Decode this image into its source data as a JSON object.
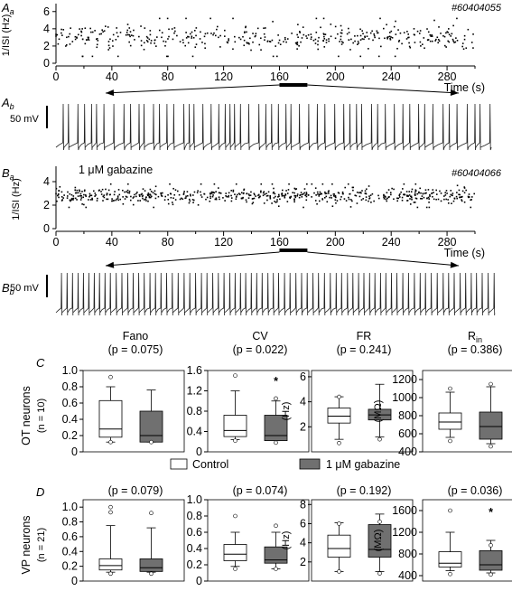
{
  "panels": {
    "Aa": {
      "label": "A",
      "sub": "a",
      "id": "#60404055",
      "ylabel": "1/ISI (Hz)",
      "yticks": [
        "0",
        "2",
        "4",
        "6"
      ],
      "xticks": [
        "0",
        "40",
        "80",
        "120",
        "160",
        "200",
        "240",
        "280"
      ],
      "xlabel": "Time (s)"
    },
    "Ab": {
      "label": "A",
      "sub": "b",
      "scale": "50 mV"
    },
    "Ba": {
      "label": "B",
      "sub": "a",
      "id": "#60404066",
      "ylabel": "1/ISI (Hz)",
      "yticks": [
        "0",
        "2",
        "4",
        "6"
      ],
      "xticks": [
        "0",
        "40",
        "80",
        "120",
        "160",
        "200",
        "240",
        "280"
      ],
      "xlabel": "Time (s)",
      "condition": "1 μM gabazine"
    },
    "Bb": {
      "label": "B",
      "sub": "b",
      "scale": "50 mV"
    },
    "C": {
      "label": "C",
      "row_label": "OT neurons",
      "n_label": "(n = 10)"
    },
    "D": {
      "label": "D",
      "row_label": "VP neurons",
      "n_label": "(n = 21)"
    }
  },
  "legend": {
    "control": "Control",
    "gabazine": "1 μM gabazine"
  },
  "colors": {
    "control": "#ffffff",
    "gabazine": "#707070"
  },
  "chart_data": [
    {
      "type": "scatter",
      "panel": "Aa",
      "title": "",
      "xlabel": "Time (s)",
      "ylabel": "1/ISI (Hz)",
      "xlim": [
        0,
        300
      ],
      "ylim": [
        0,
        6.5
      ],
      "scale_bar_x": [
        160,
        180
      ],
      "series": [
        {
          "summary": {
            "mean": 3.0,
            "sd": 1.0
          }
        }
      ]
    },
    {
      "type": "scatter",
      "panel": "Ba",
      "xlabel": "Time (s)",
      "ylabel": "1/ISI (Hz)",
      "xlim": [
        0,
        300
      ],
      "ylim": [
        0,
        5
      ],
      "scale_bar_x": [
        160,
        180
      ],
      "series": [
        {
          "summary": {
            "mean": 2.8,
            "sd": 0.45
          }
        }
      ]
    },
    {
      "type": "box",
      "panel": "C",
      "groups": [
        {
          "key": "fano",
          "title": "Fano",
          "sub": "",
          "p": "(p = 0.075)",
          "unit": "",
          "ticks": [
            "0",
            "0.2",
            "0.4",
            "0.6",
            "0.8",
            "1.0"
          ],
          "ylim": [
            0,
            1.0
          ],
          "boxes": [
            {
              "min": 0.12,
              "q1": 0.18,
              "med": 0.28,
              "q3": 0.63,
              "max": 0.8,
              "out": [
                0.12,
                0.92
              ]
            },
            {
              "min": 0.12,
              "q1": 0.12,
              "med": 0.2,
              "q3": 0.5,
              "max": 0.76,
              "out": [
                0.12
              ]
            }
          ]
        },
        {
          "key": "cv",
          "title": "CV",
          "sub": "",
          "p": "(p = 0.022)",
          "unit": "",
          "star": true,
          "ticks": [
            "0",
            "0.4",
            "0.8",
            "1.2",
            "1.6"
          ],
          "ylim": [
            0,
            1.6
          ],
          "boxes": [
            {
              "min": 0.24,
              "q1": 0.3,
              "med": 0.42,
              "q3": 0.72,
              "max": 1.2,
              "out": [
                0.22,
                1.5
              ]
            },
            {
              "min": 0.22,
              "q1": 0.22,
              "med": 0.32,
              "q3": 0.72,
              "max": 1.0,
              "out": [
                0.18,
                1.05
              ]
            }
          ]
        },
        {
          "key": "fr",
          "title": "FR",
          "sub": "",
          "p": "(p = 0.241)",
          "unit": "(Hz)",
          "ticks": [
            "2",
            "4",
            "6"
          ],
          "ylim": [
            0,
            6.5
          ],
          "boxes": [
            {
              "min": 1.0,
              "q1": 2.3,
              "med": 2.85,
              "q3": 3.5,
              "max": 4.4,
              "out": [
                0.7,
                4.4
              ]
            },
            {
              "min": 1.2,
              "q1": 2.55,
              "med": 2.95,
              "q3": 3.4,
              "max": 5.4,
              "out": [
                1.0
              ]
            }
          ]
        },
        {
          "key": "rin",
          "title": "R",
          "sub": "in",
          "p": "(p = 0.386)",
          "unit": "(MΩ)",
          "ticks": [
            "400",
            "600",
            "800",
            "1000",
            "1200"
          ],
          "ylim": [
            400,
            1300
          ],
          "boxes": [
            {
              "min": 560,
              "q1": 650,
              "med": 730,
              "q3": 830,
              "max": 1060,
              "out": [
                520,
                1100
              ]
            },
            {
              "min": 490,
              "q1": 540,
              "med": 680,
              "q3": 840,
              "max": 1120,
              "out": [
                460,
                1150
              ]
            }
          ]
        }
      ]
    },
    {
      "type": "box",
      "panel": "D",
      "groups": [
        {
          "key": "fano",
          "title": "",
          "sub": "",
          "p": "(p = 0.079)",
          "unit": "",
          "ticks": [
            "0",
            "0.2",
            "0.4",
            "0.6",
            "0.8",
            "1.0"
          ],
          "ylim": [
            0,
            1.1
          ],
          "boxes": [
            {
              "min": 0.12,
              "q1": 0.15,
              "med": 0.21,
              "q3": 0.3,
              "max": 0.75,
              "out": [
                0.1,
                0.93,
                1.0
              ]
            },
            {
              "min": 0.12,
              "q1": 0.13,
              "med": 0.18,
              "q3": 0.3,
              "max": 0.72,
              "out": [
                0.1,
                0.92
              ]
            }
          ]
        },
        {
          "key": "cv",
          "title": "",
          "sub": "",
          "p": "(p = 0.074)",
          "unit": "",
          "ticks": [
            "0",
            "0.2",
            "0.4",
            "0.6",
            "0.8",
            "1.0"
          ],
          "ylim": [
            0,
            1.0
          ],
          "boxes": [
            {
              "min": 0.18,
              "q1": 0.25,
              "med": 0.33,
              "q3": 0.45,
              "max": 0.6,
              "out": [
                0.15,
                0.8
              ]
            },
            {
              "min": 0.15,
              "q1": 0.22,
              "med": 0.26,
              "q3": 0.42,
              "max": 0.6,
              "out": [
                0.15,
                0.68
              ]
            }
          ]
        },
        {
          "key": "fr",
          "title": "",
          "sub": "",
          "p": "(p = 0.192)",
          "unit": "(Hz)",
          "ticks": [
            "2",
            "4",
            "6",
            "8"
          ],
          "ylim": [
            0,
            8.5
          ],
          "boxes": [
            {
              "min": 1.0,
              "q1": 2.5,
              "med": 3.4,
              "q3": 4.8,
              "max": 6.1,
              "out": [
                1.0,
                6.0
              ]
            },
            {
              "min": 1.0,
              "q1": 2.5,
              "med": 3.3,
              "q3": 5.9,
              "max": 7.0,
              "out": [
                0.8,
                6.2
              ]
            }
          ]
        },
        {
          "key": "rin",
          "title": "",
          "sub": "",
          "p": "(p = 0.036)",
          "unit": "(MΩ)",
          "star": true,
          "ticks": [
            "400",
            "800",
            "1200",
            "1600"
          ],
          "ylim": [
            300,
            1800
          ],
          "boxes": [
            {
              "min": 490,
              "q1": 560,
              "med": 630,
              "q3": 840,
              "max": 1200,
              "out": [
                430,
                1600
              ]
            },
            {
              "min": 450,
              "q1": 500,
              "med": 600,
              "q3": 860,
              "max": 1050,
              "out": [
                420,
                960
              ]
            }
          ]
        }
      ]
    }
  ]
}
